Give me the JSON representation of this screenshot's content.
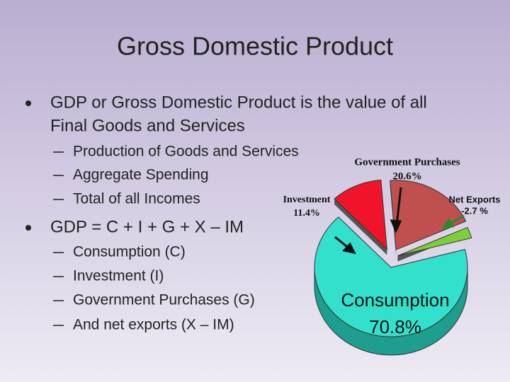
{
  "title": "Gross Domestic Product",
  "bullets": [
    {
      "lines": [
        "GDP or Gross Domestic Product is the value of all",
        "Final Goods and Services"
      ],
      "sub": [
        "Production of Goods and Services",
        "Aggregate Spending",
        "Total of all Incomes"
      ]
    },
    {
      "lines": [
        "GDP = C + I + G + X – IM"
      ],
      "sub": [
        "Consumption (C)",
        "Investment (I)",
        "Government Purchases (G)",
        "And net exports (X – IM)"
      ]
    }
  ],
  "chart_data": {
    "type": "pie",
    "categories": [
      "Consumption",
      "Investment",
      "Government Purchases",
      "Net Exports"
    ],
    "values": [
      70.8,
      11.4,
      20.6,
      -2.7
    ],
    "value_labels": [
      "70.8%",
      "11.4%",
      "20.6%",
      "-2.7 %"
    ],
    "colors": [
      "#33e0cc",
      "#f0142a",
      "#c0504d",
      "#7ccf3a"
    ]
  }
}
